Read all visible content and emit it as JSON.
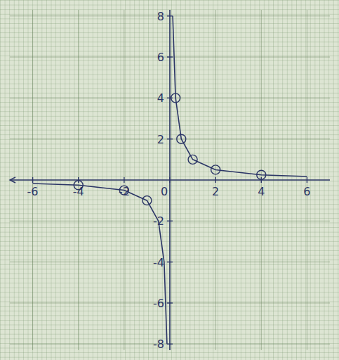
{
  "chart_data": {
    "type": "line",
    "xlim": [
      -7,
      7
    ],
    "ylim": [
      -8.3,
      8.3
    ],
    "xticks": [
      -6,
      -4,
      -2,
      0,
      2,
      4,
      6
    ],
    "yticks": [
      -8,
      -6,
      -4,
      -2,
      2,
      4,
      6,
      8
    ],
    "grid": true,
    "series": [
      {
        "type": "line",
        "color": "#2b3566",
        "line_style": "solid",
        "x": [
          -6,
          -4,
          -2,
          -1,
          -0.5,
          -0.25,
          -0.125,
          0,
          0.125,
          0.25,
          0.5,
          1,
          2,
          4,
          6
        ],
        "values": [
          -0.17,
          -0.25,
          -0.5,
          -1,
          -2,
          -4,
          -8,
          null,
          8,
          4,
          2,
          1,
          0.5,
          0.25,
          0.17
        ]
      },
      {
        "type": "scatter",
        "color": "#2b3566",
        "marker": "circle",
        "x": [
          -4,
          -2,
          -1,
          0.25,
          0.5,
          1,
          2,
          4
        ],
        "values": [
          -0.25,
          -0.5,
          -1,
          4,
          2,
          1,
          0.5,
          0.25
        ]
      }
    ]
  }
}
